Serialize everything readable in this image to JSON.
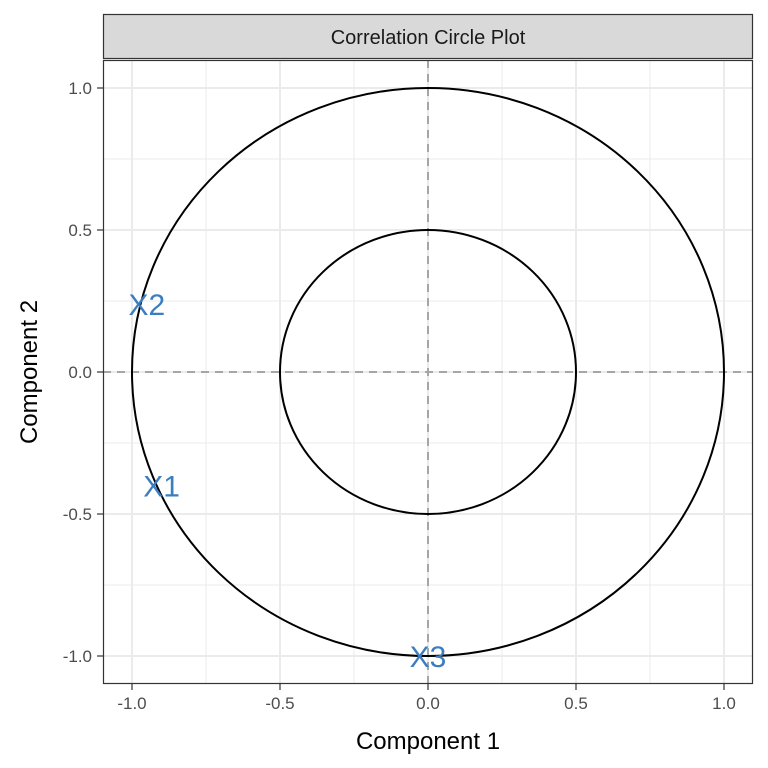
{
  "chart_data": {
    "type": "scatter",
    "title": "Correlation Circle Plot",
    "xlabel": "Component  1",
    "ylabel": "Component  2",
    "xlim": [
      -1.1,
      1.1
    ],
    "ylim": [
      -1.1,
      1.1
    ],
    "x_ticks": [
      -1.0,
      -0.5,
      0.0,
      0.5,
      1.0
    ],
    "y_ticks": [
      -1.0,
      -0.5,
      0.0,
      0.5,
      1.0
    ],
    "x_tick_labels": [
      "-1.0",
      "-0.5",
      "0.0",
      "0.5",
      "1.0"
    ],
    "y_tick_labels": [
      "-1.0",
      "-0.5",
      "0.0",
      "0.5",
      "1.0"
    ],
    "grid": true,
    "circles": [
      {
        "radius": 1.0
      },
      {
        "radius": 0.5
      }
    ],
    "reference_lines": [
      {
        "axis": "x",
        "value": 0,
        "style": "dashed"
      },
      {
        "axis": "y",
        "value": 0,
        "style": "dashed"
      }
    ],
    "points": [
      {
        "label": "X2",
        "x": -0.95,
        "y": 0.24
      },
      {
        "label": "X1",
        "x": -0.9,
        "y": -0.4
      },
      {
        "label": "X3",
        "x": 0.0,
        "y": -1.0
      }
    ],
    "point_color": "#3A7DC0",
    "circle_color": "#000000",
    "reference_color": "#A6A6A6",
    "grid_color": "#EBEBEB",
    "strip_fill": "#D9D9D9"
  }
}
